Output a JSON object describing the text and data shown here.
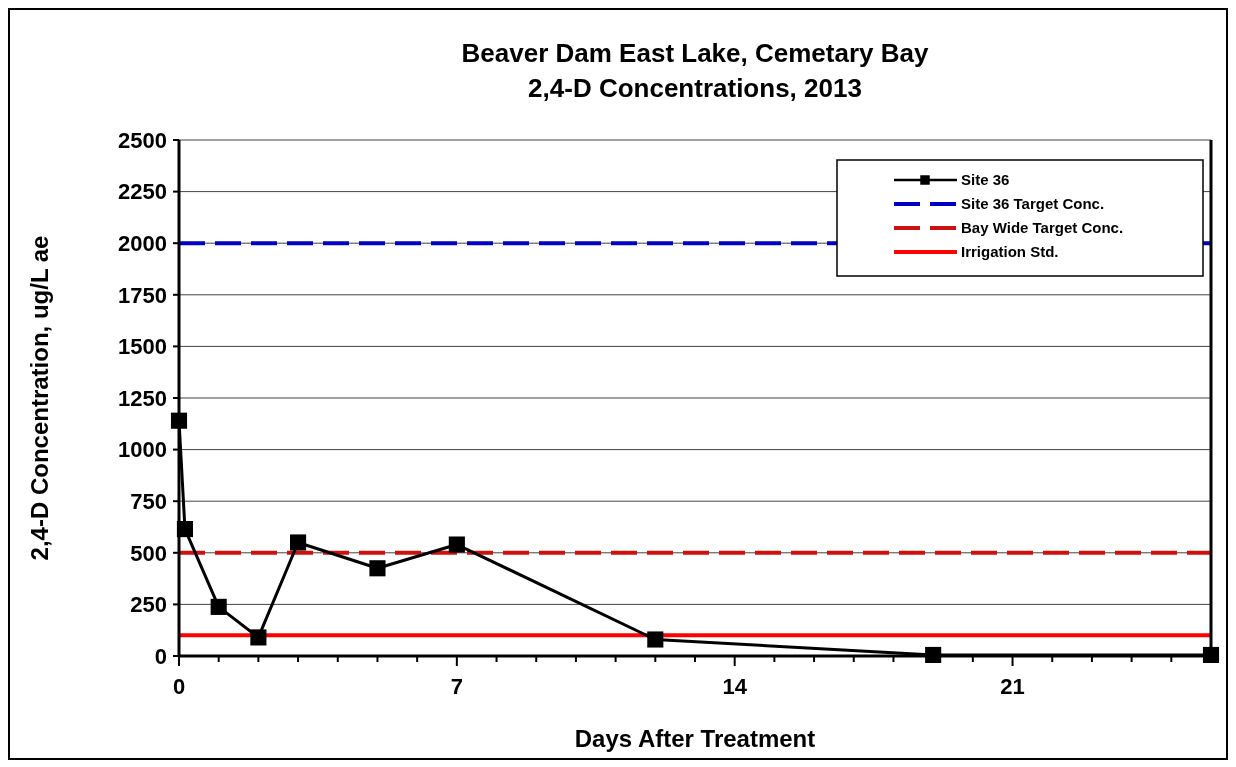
{
  "chart_data": {
    "type": "line",
    "title": "Beaver Dam East Lake, Cemetary Bay",
    "subtitle": "2,4-D Concentrations, 2013",
    "xlabel": "Days After Treatment",
    "ylabel": "2,4-D Concentration, ug/L ae",
    "x": [
      0,
      0.15,
      1,
      2,
      3,
      5,
      7,
      12,
      19,
      26
    ],
    "series": [
      {
        "name": "Site 36",
        "color": "#000000",
        "values": [
          1140,
          615,
          238,
          90,
          550,
          425,
          540,
          80,
          5,
          5
        ]
      }
    ],
    "marker": "square",
    "line_style": "solid",
    "grid": "y",
    "legend": "top right",
    "ref_lines": [
      {
        "axis": "y",
        "value": 2000,
        "label": "Site 36 Target Conc.",
        "color": "#0000c0",
        "line_style": "dashed"
      },
      {
        "axis": "y",
        "value": 500,
        "label": "Bay Wide Target Conc.",
        "color": "#cc1111",
        "line_style": "dashed"
      },
      {
        "axis": "y",
        "value": 100,
        "label": "Irrigation Std.",
        "color": "#ff0000",
        "line_style": "solid"
      }
    ],
    "xlim": [
      0,
      26
    ],
    "xticks": [
      0,
      {
        "value": 1,
        "label": null
      },
      {
        "value": 2,
        "label": null
      },
      {
        "value": 3,
        "label": null
      },
      {
        "value": 4,
        "label": null
      },
      {
        "value": 5,
        "label": null
      },
      {
        "value": 6,
        "label": null
      },
      7,
      {
        "value": 8,
        "label": null
      },
      {
        "value": 9,
        "label": null
      },
      {
        "value": 10,
        "label": null
      },
      {
        "value": 11,
        "label": null
      },
      {
        "value": 12,
        "label": null
      },
      {
        "value": 13,
        "label": null
      },
      14,
      {
        "value": 15,
        "label": null
      },
      {
        "value": 16,
        "label": null
      },
      {
        "value": 17,
        "label": null
      },
      {
        "value": 18,
        "label": null
      },
      {
        "value": 19,
        "label": null
      },
      {
        "value": 20,
        "label": null
      },
      21,
      {
        "value": 22,
        "label": null
      },
      {
        "value": 23,
        "label": null
      },
      {
        "value": 24,
        "label": null
      },
      {
        "value": 25,
        "label": null
      }
    ],
    "ylim": [
      0,
      2500
    ],
    "yticks": [
      0,
      250,
      500,
      750,
      1000,
      1250,
      1500,
      1750,
      2000,
      2250,
      2500
    ]
  }
}
